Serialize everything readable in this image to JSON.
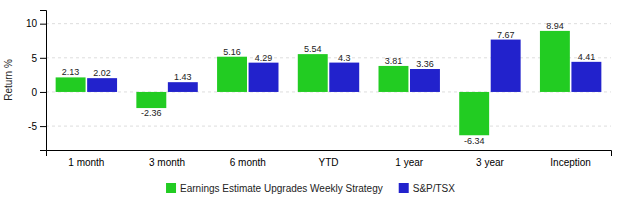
{
  "chart_data": {
    "type": "bar",
    "categories": [
      "1 month",
      "3 month",
      "6 month",
      "YTD",
      "1 year",
      "3 year",
      "Inception"
    ],
    "series": [
      {
        "name": "Earnings Estimate Upgrades Weekly Strategy",
        "color": "#22cc22",
        "values": [
          2.13,
          -2.36,
          5.16,
          5.54,
          3.81,
          -6.34,
          8.94
        ]
      },
      {
        "name": "S&P/TSX",
        "color": "#2222cc",
        "values": [
          2.02,
          1.43,
          4.29,
          4.3,
          3.36,
          7.67,
          4.41
        ]
      }
    ],
    "ylabel": "Return %",
    "ylim": [
      -8.5,
      12
    ],
    "yticks": [
      -5,
      0,
      5,
      10
    ],
    "grid": true,
    "data_labels": true,
    "legend": "bottom"
  }
}
